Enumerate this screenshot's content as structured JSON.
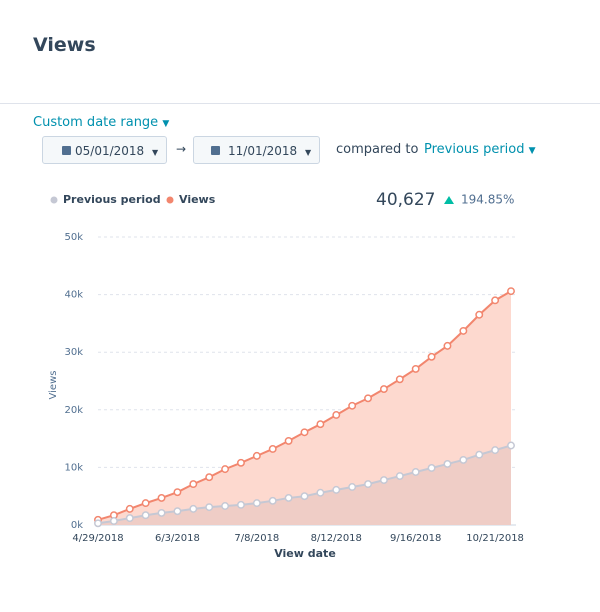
{
  "header": {
    "title": "Views"
  },
  "controls": {
    "range_label": "Custom date range",
    "start_date": "05/01/2018",
    "end_date": "11/01/2018",
    "compared_label": "compared to",
    "compare_option": "Previous period"
  },
  "summary": {
    "total": "40,627",
    "change": "194.85%"
  },
  "chart_data": {
    "type": "area",
    "x_label": "View date",
    "y_label": "Views",
    "categories": [
      "4/29/2018",
      null,
      null,
      null,
      null,
      "6/3/2018",
      null,
      null,
      null,
      null,
      "7/8/2018",
      null,
      null,
      null,
      null,
      "8/12/2018",
      null,
      null,
      null,
      null,
      "9/16/2018",
      null,
      null,
      null,
      null,
      "10/21/2018",
      null
    ],
    "series": [
      {
        "name": "Previous period",
        "color": "#c5c8d4",
        "fill": "#efcdc6",
        "values": [
          300,
          700,
          1200,
          1700,
          2100,
          2400,
          2800,
          3100,
          3300,
          3500,
          3800,
          4200,
          4700,
          5000,
          5600,
          6100,
          6600,
          7100,
          7800,
          8500,
          9200,
          9900,
          10600,
          11300,
          12200,
          13000,
          13800
        ]
      },
      {
        "name": "Views",
        "color": "#f2866e",
        "fill": "#fdd9cf",
        "values": [
          900,
          1700,
          2800,
          3800,
          4700,
          5700,
          7100,
          8300,
          9700,
          10800,
          12000,
          13200,
          14600,
          16100,
          17500,
          19100,
          20700,
          22000,
          23600,
          25300,
          27100,
          29200,
          31100,
          33700,
          36500,
          39000,
          40600
        ]
      }
    ],
    "ylim": [
      0,
      50000
    ],
    "yticks": [
      {
        "value": 0,
        "label": "0k"
      },
      {
        "value": 10000,
        "label": "10k"
      },
      {
        "value": 20000,
        "label": "20k"
      },
      {
        "value": 30000,
        "label": "30k"
      },
      {
        "value": 40000,
        "label": "40k"
      },
      {
        "value": 50000,
        "label": "50k"
      }
    ],
    "grid": true
  }
}
